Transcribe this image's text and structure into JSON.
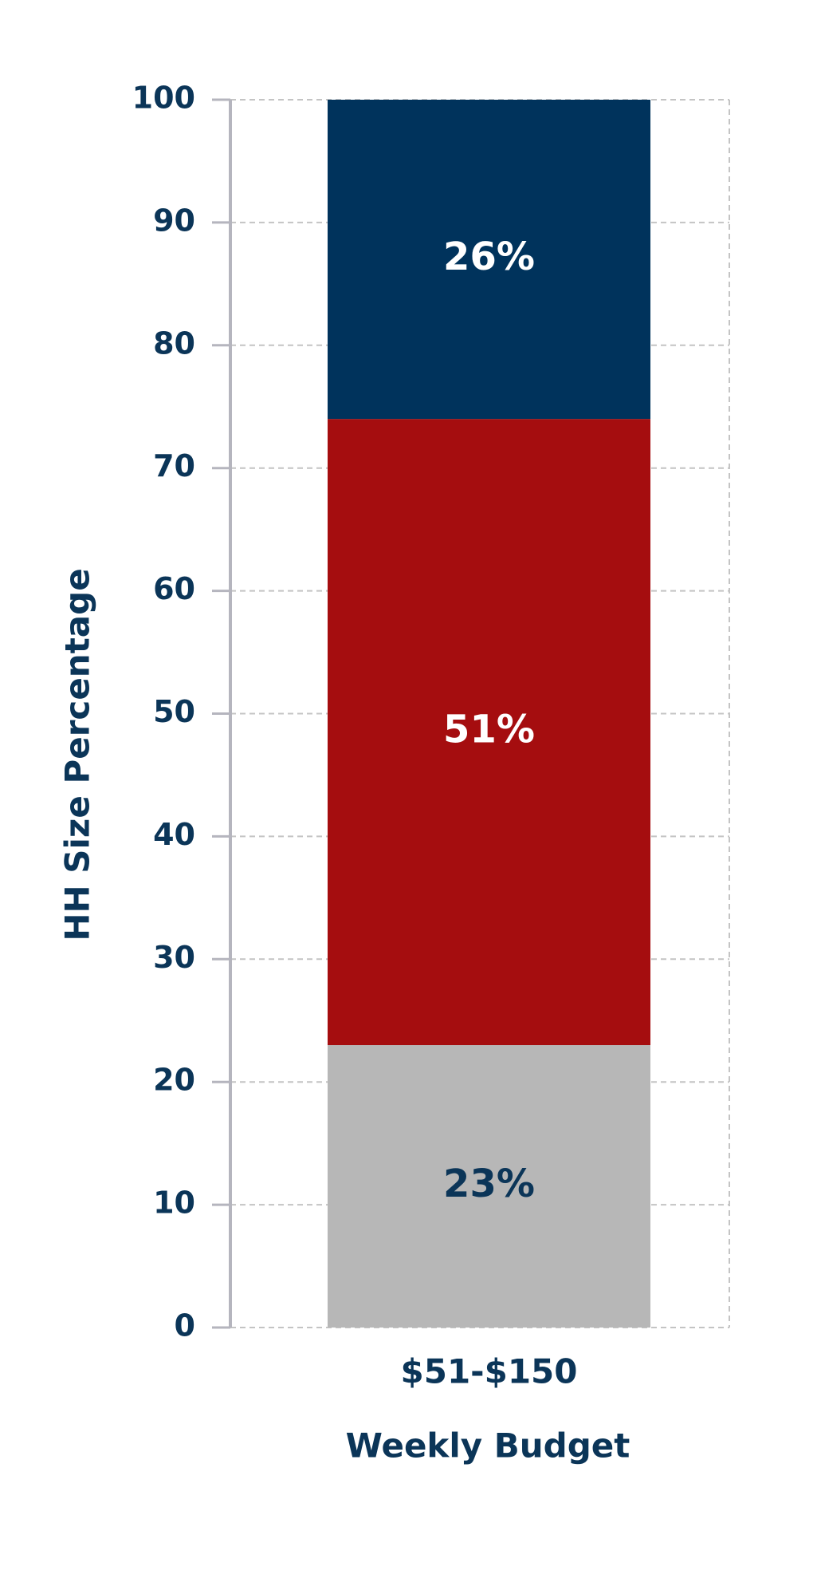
{
  "chart_data": {
    "type": "bar",
    "stacked": true,
    "categories": [
      "$51-$150"
    ],
    "series": [
      {
        "color": "#b7b7b7",
        "label_color": "#0b3558",
        "values": [
          23
        ],
        "value_labels": [
          "23%"
        ]
      },
      {
        "color": "#a50d0f",
        "label_color": "#ffffff",
        "values": [
          51
        ],
        "value_labels": [
          "51%"
        ]
      },
      {
        "color": "#00335c",
        "label_color": "#ffffff",
        "values": [
          26
        ],
        "value_labels": [
          "26%"
        ]
      }
    ],
    "xlabel": "Weekly Budget",
    "ylabel": "HH Size Percentage",
    "ylim": [
      0,
      100
    ],
    "yticks": [
      0,
      10,
      20,
      30,
      40,
      50,
      60,
      70,
      80,
      90,
      100
    ],
    "grid": true
  }
}
